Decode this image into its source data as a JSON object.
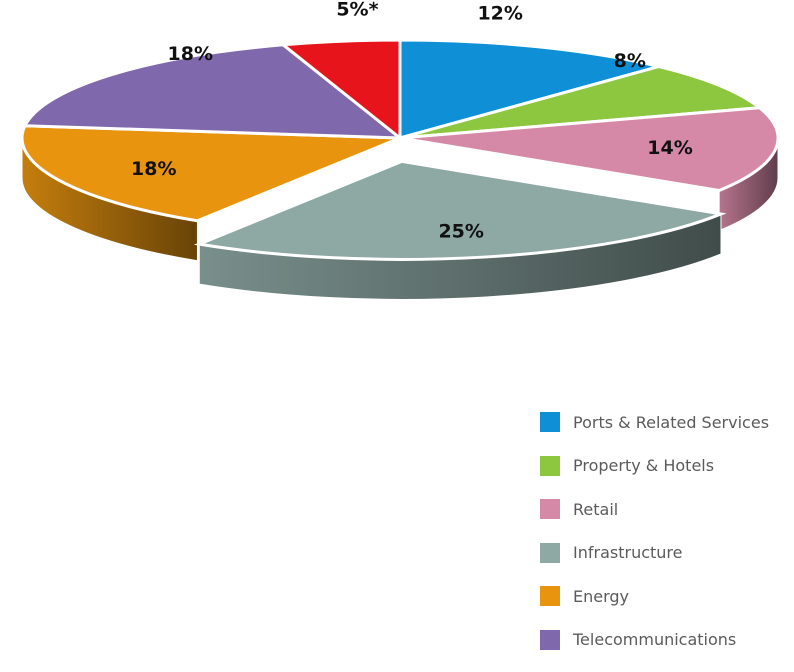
{
  "chart_data": {
    "type": "pie",
    "title": "",
    "slices": [
      {
        "name": "Ports & Related Services",
        "value": 12,
        "label": "12%",
        "color": "#0e8fd6"
      },
      {
        "name": "Property & Hotels",
        "value": 8,
        "label": "8%",
        "color": "#8dc63f"
      },
      {
        "name": "Retail",
        "value": 14,
        "label": "14%",
        "color": "#d689a6"
      },
      {
        "name": "Infrastructure",
        "value": 25,
        "label": "25%",
        "color": "#8ea8a4"
      },
      {
        "name": "Energy",
        "value": 18,
        "label": "18%",
        "color": "#e8940f"
      },
      {
        "name": "Telecommunications",
        "value": 18,
        "label": "18%",
        "color": "#8068ad"
      },
      {
        "name": "",
        "value": 5,
        "label": "5%*",
        "color": "#e8141c"
      }
    ],
    "legend_position": "bottom-right"
  }
}
